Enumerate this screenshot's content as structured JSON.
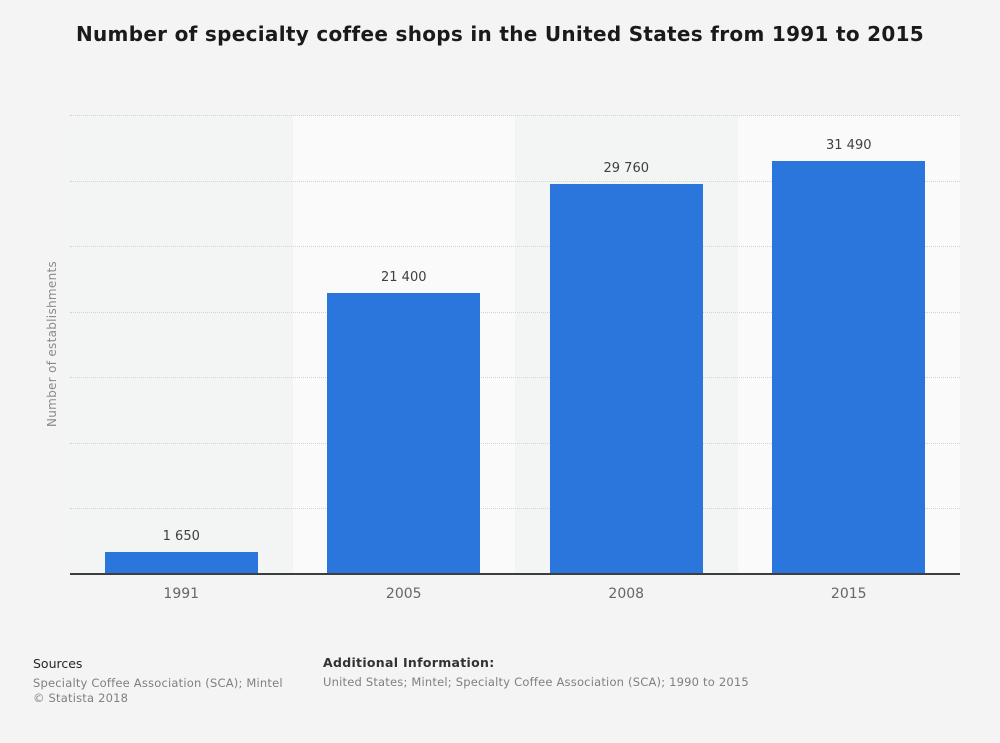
{
  "chart_data": {
    "type": "bar",
    "title": "Number of specialty coffee shops in the United States from 1991 to 2015",
    "categories": [
      "1991",
      "2005",
      "2008",
      "2015"
    ],
    "values": [
      1650,
      21400,
      29760,
      31490
    ],
    "value_labels": [
      "1 650",
      "21 400",
      "29 760",
      "31 490"
    ],
    "xlabel": "",
    "ylabel": "Number of establishments",
    "ylim": [
      0,
      35000
    ],
    "gridline_step": 5000,
    "grid": "horizontal-dotted",
    "legend": "none",
    "bar_color": "#2a76dd"
  },
  "footer": {
    "sources_heading": "Sources",
    "sources_line": "Specialty Coffee Association (SCA); Mintel",
    "copyright": "© Statista 2018",
    "additional_heading": "Additional Information:",
    "additional_line": "United States; Mintel; Specialty Coffee Association (SCA); 1990 to 2015"
  },
  "colors": {
    "page_background": "#f4f4f4",
    "band_odd": "#f3f4f4",
    "band_even": "#fafafa",
    "bar": "#2a76dd",
    "gridline": "#d2d2d2",
    "axis_line": "#3d3d3d",
    "title_text": "#1a1a1a",
    "value_label_text": "#404040",
    "tick_label_text": "#666666",
    "muted_text": "#7f7f7f"
  }
}
